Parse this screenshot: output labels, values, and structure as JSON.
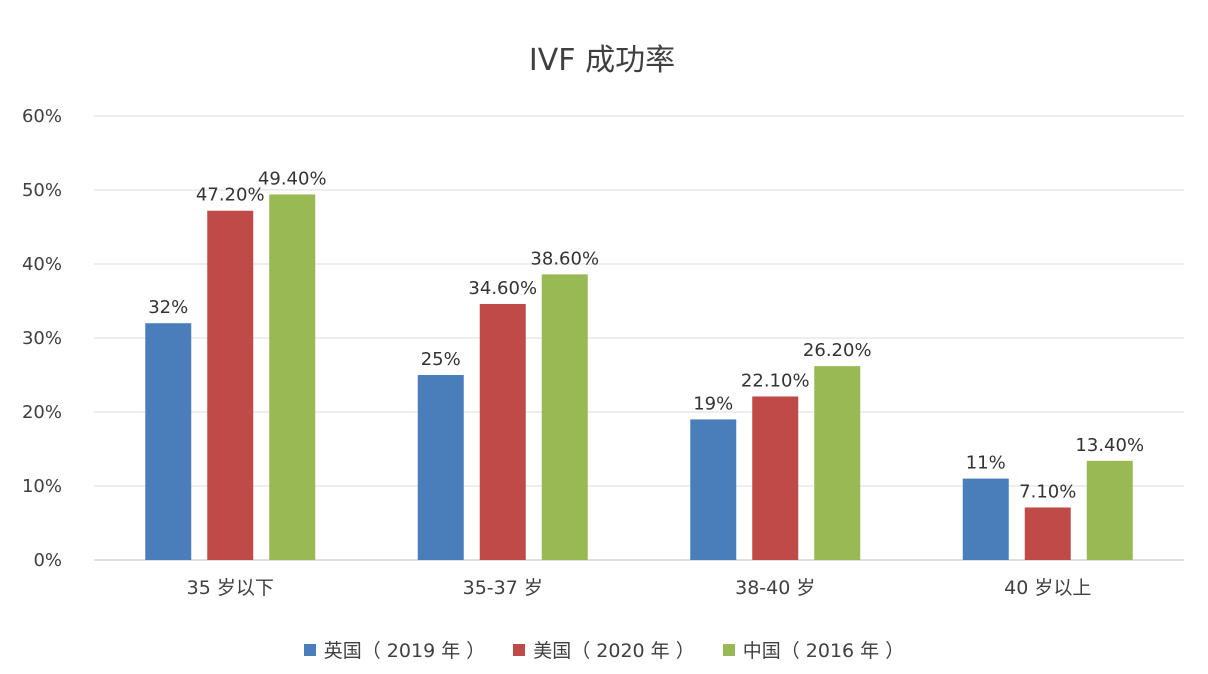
{
  "chart_data": {
    "type": "bar",
    "title": "IVF 成功率",
    "categories": [
      "35 岁以下",
      "35-37 岁",
      "38-40 岁",
      "40 岁以上"
    ],
    "series": [
      {
        "name": "英国（ 2019 年 ）",
        "color": "#4a7ebb",
        "values": [
          32,
          25,
          19,
          11
        ],
        "labels": [
          "32%",
          "25%",
          "19%",
          "11%"
        ]
      },
      {
        "name": "美国（ 2020 年 ）",
        "color": "#be4b48",
        "values": [
          47.2,
          34.6,
          22.1,
          7.1
        ],
        "labels": [
          "47.20%",
          "34.60%",
          "22.10%",
          "7.10%"
        ]
      },
      {
        "name": "中国（ 2016 年 ）",
        "color": "#98b954",
        "values": [
          49.4,
          38.6,
          26.2,
          13.4
        ],
        "labels": [
          "49.40%",
          "38.60%",
          "26.20%",
          "13.40%"
        ]
      }
    ],
    "ylim": [
      0,
      60
    ],
    "yticks": [
      "0%",
      "10%",
      "20%",
      "30%",
      "40%",
      "50%",
      "60%"
    ],
    "xlabel": "",
    "ylabel": "",
    "grid": true,
    "legend_position": "bottom"
  }
}
